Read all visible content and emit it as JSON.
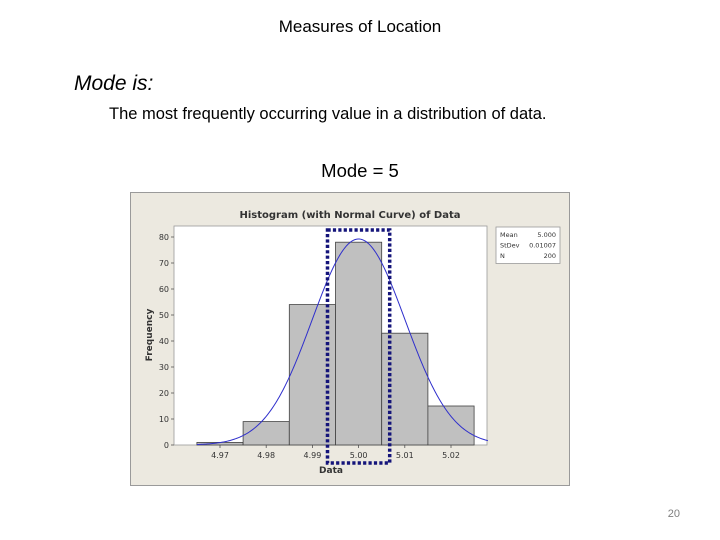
{
  "slide": {
    "title": "Measures of Location",
    "heading": "Mode is:",
    "definition": "The most frequently occurring value in a distribution of data.",
    "mode_value": "Mode = 5",
    "page_number": "20"
  },
  "colors": {
    "figure_background": "#ece9e0",
    "plot_background": "#ffffff",
    "bar_fill": "#c0c0c0",
    "bar_stroke": "#404040",
    "curve": "#2f2fcc",
    "mode_highlight": "#14147a"
  },
  "chart_data": {
    "type": "bar",
    "title": "Histogram (with Normal Curve) of Data",
    "xlabel": "Data",
    "ylabel": "Frequency",
    "categories": [
      "4.97",
      "4.98",
      "4.99",
      "5.00",
      "5.01",
      "5.02"
    ],
    "bins": [
      {
        "center": 4.97,
        "value": 1
      },
      {
        "center": 4.98,
        "value": 9
      },
      {
        "center": 4.99,
        "value": 54
      },
      {
        "center": 5.0,
        "value": 78
      },
      {
        "center": 5.01,
        "value": 43
      },
      {
        "center": 5.02,
        "value": 15
      }
    ],
    "y_ticks": [
      0,
      10,
      20,
      30,
      40,
      50,
      60,
      70,
      80
    ],
    "x_ticks": [
      "4.97",
      "4.98",
      "4.99",
      "5.00",
      "5.01",
      "5.02"
    ],
    "ylim": [
      0,
      80
    ],
    "normal_curve": {
      "mean": 5.0,
      "stdev": 0.01007
    },
    "highlighted_category": "5.00",
    "grid": false,
    "stats_box": {
      "rows": [
        {
          "label": "Mean",
          "value": "5.000"
        },
        {
          "label": "StDev",
          "value": "0.01007"
        },
        {
          "label": "N",
          "value": "200"
        }
      ]
    }
  }
}
